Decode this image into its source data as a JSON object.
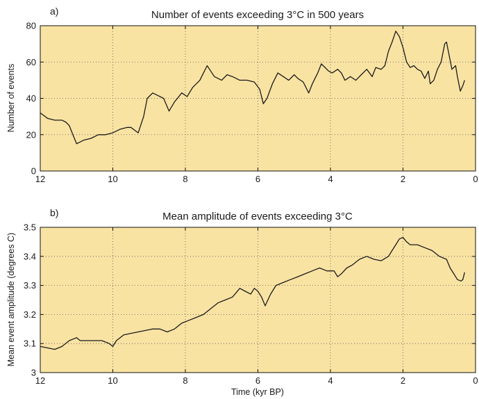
{
  "colors": {
    "plot_background": "#f9e3a3",
    "line": "#1a1a1a"
  },
  "chart_data": [
    {
      "type": "line",
      "panel_label": "a)",
      "title": "Number of events exceeding 3°C in 500 years",
      "xlabel": "",
      "ylabel": "Number of events",
      "xlim": [
        12,
        0
      ],
      "ylim": [
        0,
        80
      ],
      "x_reversed": true,
      "grid": true,
      "xticks": [
        12,
        10,
        8,
        6,
        4,
        2,
        0
      ],
      "xtick_labels": [
        "12",
        "10",
        "8",
        "6",
        "4",
        "2",
        "0"
      ],
      "yticks": [
        0,
        20,
        40,
        60,
        80
      ],
      "ytick_labels": [
        "0",
        "20",
        "40",
        "60",
        "80"
      ],
      "series": [
        {
          "points": [
            [
              12.0,
              32
            ],
            [
              11.8,
              29
            ],
            [
              11.6,
              28
            ],
            [
              11.4,
              28
            ],
            [
              11.3,
              27
            ],
            [
              11.2,
              25
            ],
            [
              11.1,
              20
            ],
            [
              11.0,
              15
            ],
            [
              10.8,
              17
            ],
            [
              10.6,
              18
            ],
            [
              10.4,
              20
            ],
            [
              10.2,
              20
            ],
            [
              10.0,
              21
            ],
            [
              9.8,
              23
            ],
            [
              9.6,
              24
            ],
            [
              9.5,
              24
            ],
            [
              9.3,
              21
            ],
            [
              9.15,
              30
            ],
            [
              9.05,
              40
            ],
            [
              8.9,
              43
            ],
            [
              8.8,
              42
            ],
            [
              8.6,
              40
            ],
            [
              8.45,
              33
            ],
            [
              8.3,
              38
            ],
            [
              8.1,
              43
            ],
            [
              7.95,
              41
            ],
            [
              7.8,
              46
            ],
            [
              7.6,
              50
            ],
            [
              7.5,
              54
            ],
            [
              7.4,
              58
            ],
            [
              7.3,
              55
            ],
            [
              7.2,
              52
            ],
            [
              7.0,
              50
            ],
            [
              6.85,
              53
            ],
            [
              6.7,
              52
            ],
            [
              6.5,
              50
            ],
            [
              6.3,
              50
            ],
            [
              6.1,
              49
            ],
            [
              5.95,
              45
            ],
            [
              5.85,
              37
            ],
            [
              5.75,
              40
            ],
            [
              5.6,
              48
            ],
            [
              5.45,
              54
            ],
            [
              5.3,
              52
            ],
            [
              5.15,
              50
            ],
            [
              5.0,
              53
            ],
            [
              4.9,
              51
            ],
            [
              4.75,
              49
            ],
            [
              4.6,
              43
            ],
            [
              4.5,
              48
            ],
            [
              4.35,
              54
            ],
            [
              4.25,
              59
            ],
            [
              4.15,
              57
            ],
            [
              4.05,
              55
            ],
            [
              3.95,
              54
            ],
            [
              3.8,
              56
            ],
            [
              3.7,
              54
            ],
            [
              3.6,
              50
            ],
            [
              3.45,
              52
            ],
            [
              3.3,
              50
            ],
            [
              3.15,
              53
            ],
            [
              3.0,
              56
            ],
            [
              2.85,
              52
            ],
            [
              2.75,
              57
            ],
            [
              2.6,
              56
            ],
            [
              2.5,
              58
            ],
            [
              2.4,
              66
            ],
            [
              2.3,
              71
            ],
            [
              2.2,
              77
            ],
            [
              2.1,
              74
            ],
            [
              2.0,
              68
            ],
            [
              1.9,
              60
            ],
            [
              1.8,
              57
            ],
            [
              1.7,
              58
            ],
            [
              1.6,
              56
            ],
            [
              1.5,
              55
            ],
            [
              1.4,
              51
            ],
            [
              1.3,
              55
            ],
            [
              1.25,
              48
            ],
            [
              1.15,
              50
            ],
            [
              1.05,
              56
            ],
            [
              0.95,
              60
            ],
            [
              0.85,
              70
            ],
            [
              0.8,
              71
            ],
            [
              0.75,
              66
            ],
            [
              0.65,
              56
            ],
            [
              0.55,
              58
            ],
            [
              0.5,
              52
            ],
            [
              0.42,
              44
            ],
            [
              0.35,
              47
            ],
            [
              0.3,
              50
            ]
          ]
        }
      ]
    },
    {
      "type": "line",
      "panel_label": "b)",
      "title": "Mean amplitude of events exceeding 3°C",
      "xlabel": "Time (kyr BP)",
      "ylabel": "Mean event amplitude (degrees C)",
      "xlim": [
        12,
        0
      ],
      "ylim": [
        3.0,
        3.5
      ],
      "x_reversed": true,
      "grid": true,
      "xticks": [
        12,
        10,
        8,
        6,
        4,
        2,
        0
      ],
      "xtick_labels": [
        "12",
        "10",
        "8",
        "6",
        "4",
        "2",
        "0"
      ],
      "yticks": [
        3.0,
        3.1,
        3.2,
        3.3,
        3.4,
        3.5
      ],
      "ytick_labels": [
        "3",
        "3.1",
        "3.2",
        "3.3",
        "3.4",
        "3.5"
      ],
      "series": [
        {
          "points": [
            [
              12.0,
              3.09
            ],
            [
              11.8,
              3.085
            ],
            [
              11.6,
              3.08
            ],
            [
              11.4,
              3.09
            ],
            [
              11.2,
              3.11
            ],
            [
              11.0,
              3.12
            ],
            [
              10.9,
              3.11
            ],
            [
              10.7,
              3.11
            ],
            [
              10.5,
              3.11
            ],
            [
              10.3,
              3.11
            ],
            [
              10.1,
              3.1
            ],
            [
              10.0,
              3.09
            ],
            [
              9.9,
              3.11
            ],
            [
              9.7,
              3.13
            ],
            [
              9.5,
              3.135
            ],
            [
              9.3,
              3.14
            ],
            [
              9.1,
              3.145
            ],
            [
              8.9,
              3.15
            ],
            [
              8.7,
              3.15
            ],
            [
              8.5,
              3.14
            ],
            [
              8.3,
              3.15
            ],
            [
              8.1,
              3.17
            ],
            [
              7.9,
              3.18
            ],
            [
              7.7,
              3.19
            ],
            [
              7.5,
              3.2
            ],
            [
              7.3,
              3.22
            ],
            [
              7.1,
              3.24
            ],
            [
              6.9,
              3.25
            ],
            [
              6.7,
              3.26
            ],
            [
              6.5,
              3.29
            ],
            [
              6.35,
              3.28
            ],
            [
              6.2,
              3.27
            ],
            [
              6.1,
              3.29
            ],
            [
              6.0,
              3.28
            ],
            [
              5.9,
              3.26
            ],
            [
              5.8,
              3.23
            ],
            [
              5.65,
              3.27
            ],
            [
              5.5,
              3.3
            ],
            [
              5.3,
              3.31
            ],
            [
              5.1,
              3.32
            ],
            [
              4.9,
              3.33
            ],
            [
              4.7,
              3.34
            ],
            [
              4.5,
              3.35
            ],
            [
              4.3,
              3.36
            ],
            [
              4.1,
              3.35
            ],
            [
              3.9,
              3.35
            ],
            [
              3.8,
              3.33
            ],
            [
              3.7,
              3.34
            ],
            [
              3.55,
              3.36
            ],
            [
              3.4,
              3.37
            ],
            [
              3.2,
              3.39
            ],
            [
              3.0,
              3.4
            ],
            [
              2.8,
              3.39
            ],
            [
              2.6,
              3.385
            ],
            [
              2.4,
              3.4
            ],
            [
              2.3,
              3.42
            ],
            [
              2.2,
              3.44
            ],
            [
              2.1,
              3.46
            ],
            [
              2.0,
              3.465
            ],
            [
              1.9,
              3.45
            ],
            [
              1.8,
              3.44
            ],
            [
              1.6,
              3.44
            ],
            [
              1.4,
              3.43
            ],
            [
              1.2,
              3.42
            ],
            [
              1.0,
              3.4
            ],
            [
              0.8,
              3.39
            ],
            [
              0.7,
              3.36
            ],
            [
              0.6,
              3.34
            ],
            [
              0.5,
              3.32
            ],
            [
              0.4,
              3.315
            ],
            [
              0.35,
              3.32
            ],
            [
              0.3,
              3.345
            ]
          ]
        }
      ]
    }
  ]
}
